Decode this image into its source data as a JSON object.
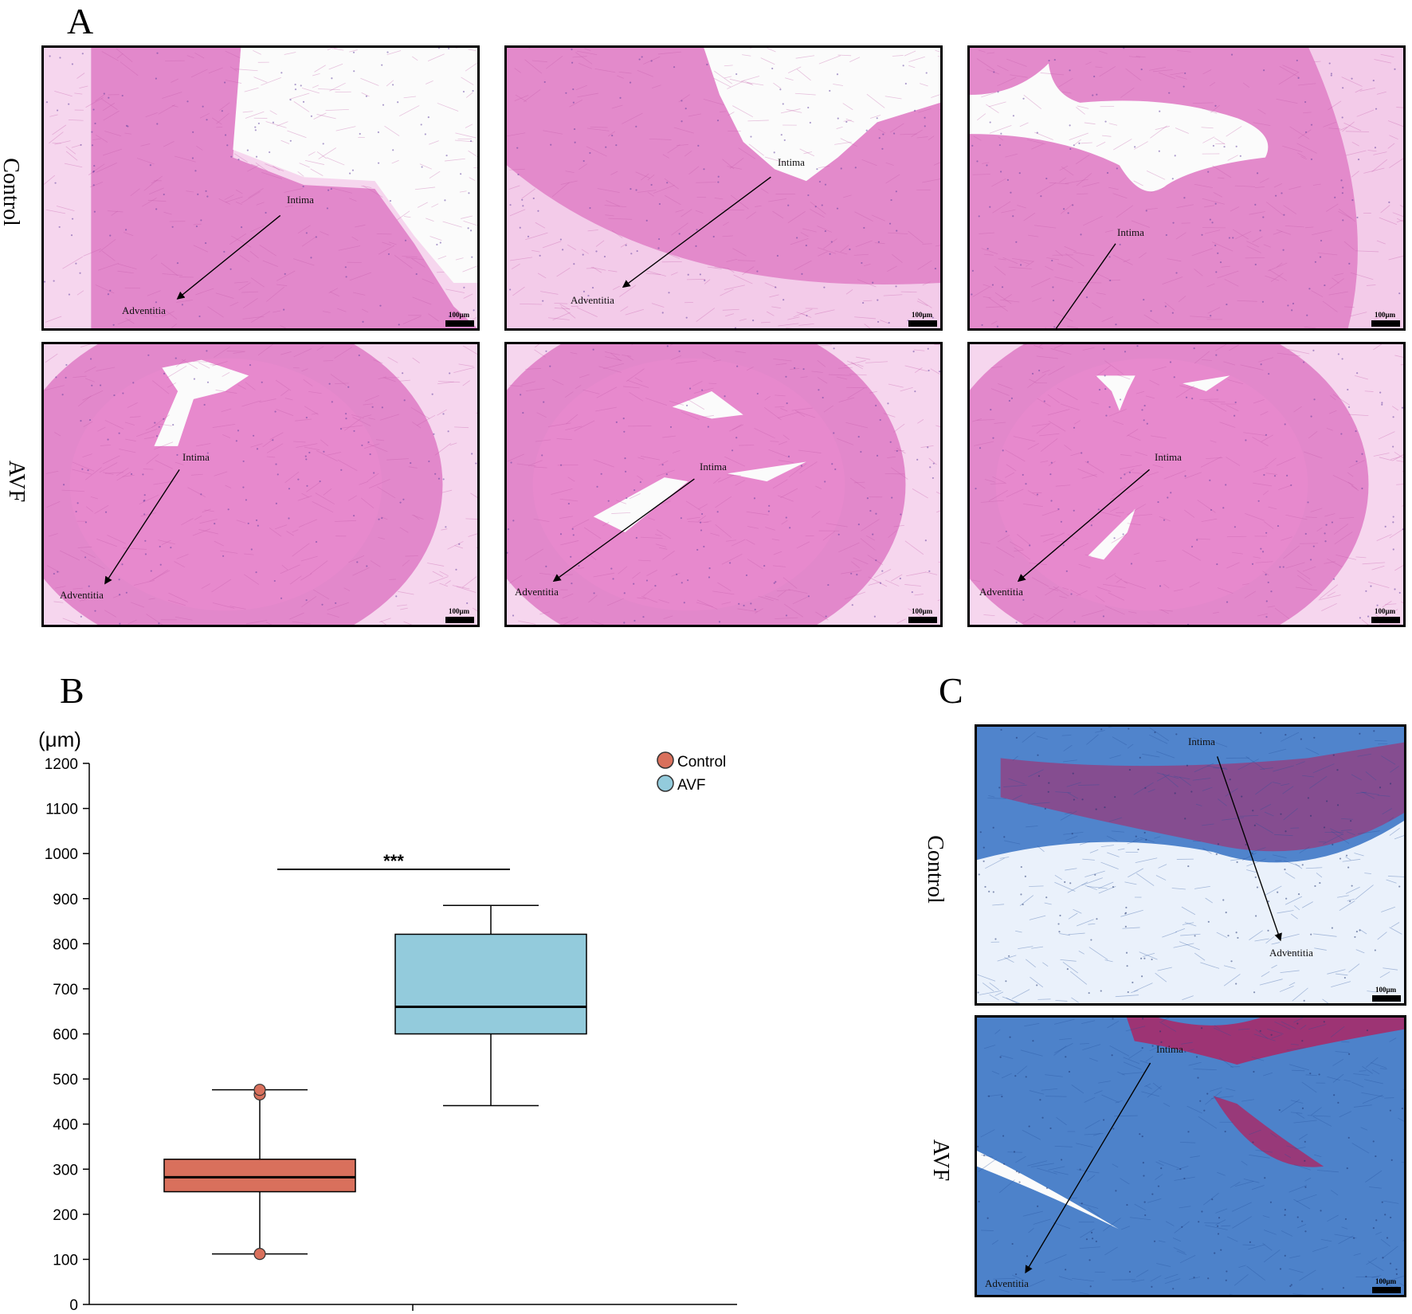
{
  "panels": {
    "a": "A",
    "b": "B",
    "c": "C"
  },
  "row_labels": {
    "control": "Control",
    "avf": "AVF"
  },
  "micro_labels": {
    "intima": "Intima",
    "adventitia": "Adventitia",
    "scale": "100μm"
  },
  "colors": {
    "he_pink": "#e07fc6",
    "he_light": "#f6d6ee",
    "masson_blue": "#3f78c6",
    "masson_red": "#b1205e",
    "control_box": "#d9705c",
    "avf_box": "#93cbdc"
  },
  "chart_data": {
    "type": "box",
    "ylabel": "(μm)",
    "ylim": [
      0,
      1200
    ],
    "yticks": [
      "0",
      "100",
      "200",
      "300",
      "400",
      "500",
      "600",
      "700",
      "800",
      "900",
      "1000",
      "1100",
      "1200"
    ],
    "legend": [
      "Control",
      "AVF"
    ],
    "significance": "***",
    "series": [
      {
        "name": "Control",
        "color": "#d9705c",
        "whisker_low": 112,
        "q1": 250,
        "median": 282,
        "q3": 322,
        "whisker_high": 476,
        "outliers": [
          112,
          466,
          476
        ]
      },
      {
        "name": "AVF",
        "color": "#93cbdc",
        "whisker_low": 441,
        "q1": 600,
        "median": 660,
        "q3": 821,
        "whisker_high": 885,
        "outliers": []
      }
    ]
  }
}
